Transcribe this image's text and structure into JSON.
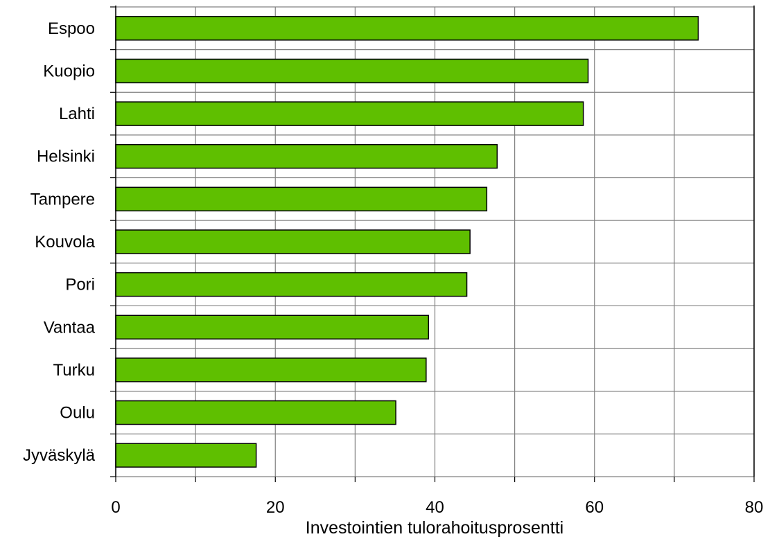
{
  "chart_data": {
    "type": "bar",
    "orientation": "horizontal",
    "categories": [
      "Espoo",
      "Kuopio",
      "Lahti",
      "Helsinki",
      "Tampere",
      "Kouvola",
      "Pori",
      "Vantaa",
      "Turku",
      "Oulu",
      "Jyväskylä"
    ],
    "values": [
      73.0,
      59.2,
      58.6,
      47.8,
      46.5,
      44.4,
      44.0,
      39.2,
      38.9,
      35.1,
      17.6
    ],
    "xlabel": "Investointien tulorahoitusprosentti",
    "ylabel": "",
    "xlim": [
      0,
      80
    ],
    "xticks": [
      0,
      20,
      40,
      60,
      80
    ],
    "xtick_labels": [
      "0",
      "20",
      "40",
      "60",
      "80"
    ],
    "grid": true,
    "bar_color": "#5fbf00",
    "bar_edge_color": "#000000",
    "grid_color": "#808080"
  }
}
